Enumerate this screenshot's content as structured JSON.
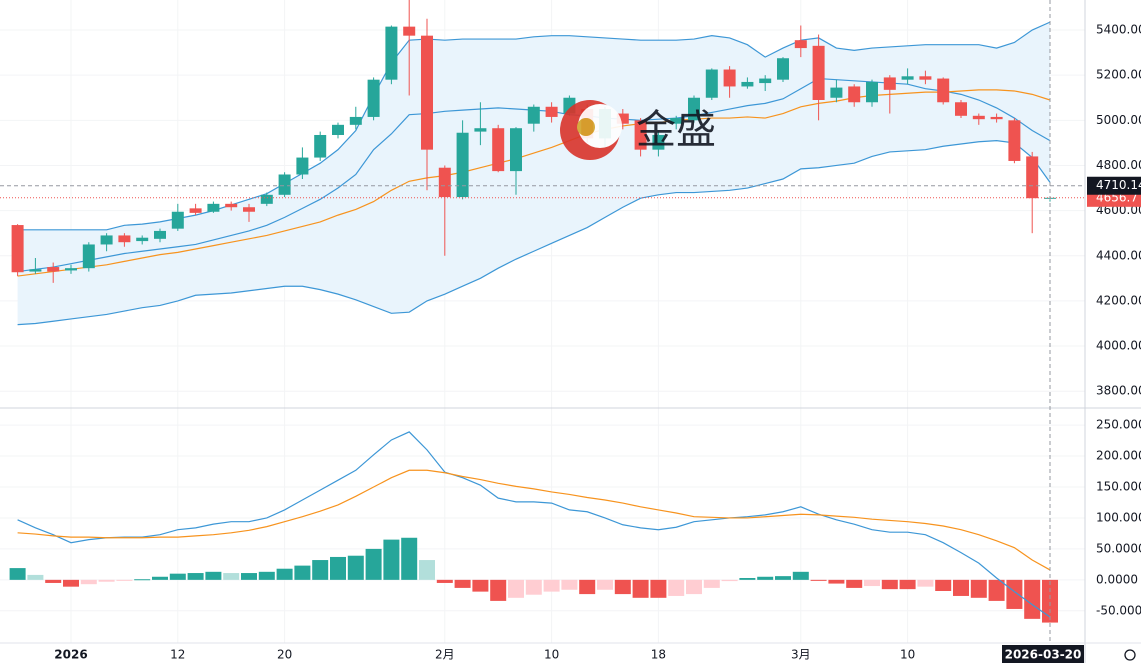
{
  "chart_data": [
    {
      "type": "candlestick",
      "categories": [
        null,
        null,
        null,
        "2026",
        null,
        null,
        null,
        null,
        null,
        "12",
        null,
        null,
        null,
        null,
        null,
        "20",
        null,
        null,
        null,
        null,
        null,
        null,
        null,
        null,
        "2月",
        null,
        null,
        null,
        null,
        null,
        "10",
        null,
        null,
        null,
        null,
        null,
        "18",
        null,
        null,
        null,
        null,
        null,
        null,
        null,
        "3月",
        null,
        null,
        null,
        null,
        null,
        "10",
        null,
        null,
        null,
        null,
        null,
        null,
        null,
        "2026-03-20"
      ],
      "open": [
        4536,
        4330,
        4350,
        4335,
        4345,
        4450,
        4490,
        4465,
        4475,
        4520,
        4610,
        4595,
        4630,
        4615,
        4630,
        4670,
        4760,
        4835,
        4935,
        4980,
        5015,
        5180,
        5415,
        5375,
        4790,
        4660,
        4950,
        4965,
        4775,
        4985,
        5060,
        5030,
        5050,
        4920,
        5030,
        5000,
        4870,
        4985,
        5000,
        5100,
        5225,
        5150,
        5165,
        5180,
        5355,
        5330,
        5100,
        5150,
        5080,
        5190,
        5180,
        5195,
        5185,
        5080,
        5020,
        5015,
        5000,
        4840,
        4656.7
      ],
      "high": [
        4540,
        4390,
        4370,
        4360,
        4460,
        4500,
        4500,
        4490,
        4520,
        4630,
        4630,
        4640,
        4640,
        4630,
        4680,
        4770,
        4880,
        4950,
        4990,
        5060,
        5190,
        5420,
        5533,
        5450,
        4800,
        5000,
        5080,
        4980,
        4970,
        5070,
        5080,
        5110,
        5070,
        5060,
        5050,
        5010,
        4950,
        5020,
        5110,
        5230,
        5240,
        5190,
        5200,
        5280,
        5420,
        5380,
        5180,
        5160,
        5180,
        5200,
        5230,
        5220,
        5190,
        5090,
        5030,
        5030,
        5010,
        4860,
        4665
      ],
      "low": [
        4310,
        4320,
        4280,
        4320,
        4330,
        4420,
        4440,
        4450,
        4460,
        4510,
        4580,
        4590,
        4600,
        4550,
        4620,
        4660,
        4740,
        4820,
        4920,
        4960,
        5000,
        5160,
        5110,
        4690,
        4400,
        4650,
        4890,
        4770,
        4670,
        4950,
        4990,
        5020,
        4900,
        4880,
        4960,
        4840,
        4840,
        4960,
        4990,
        5090,
        5100,
        5140,
        5130,
        5170,
        5280,
        5000,
        5080,
        5060,
        5060,
        5030,
        5160,
        5160,
        5070,
        5010,
        4980,
        4990,
        4810,
        4500,
        4640
      ],
      "close": [
        4327,
        4340,
        4330,
        4345,
        4450,
        4490,
        4460,
        4480,
        4510,
        4595,
        4590,
        4630,
        4615,
        4595,
        4670,
        4760,
        4835,
        4935,
        4980,
        5015,
        5180,
        5415,
        5375,
        4870,
        4660,
        4945,
        4965,
        4775,
        4965,
        5060,
        5015,
        5100,
        4920,
        5050,
        4985,
        4870,
        4935,
        5010,
        5100,
        5225,
        5150,
        5170,
        5185,
        5275,
        5320,
        5090,
        5145,
        5080,
        5170,
        5135,
        5195,
        5180,
        5080,
        5020,
        5005,
        5005,
        4820,
        4655,
        4656.7
      ],
      "up_color": "#26a69a",
      "down_color": "#ef5350",
      "band_color": "#e9f4fc",
      "series": [
        {
          "color": "#3d97d6",
          "values": [
            4515,
            4515,
            4515,
            4515,
            4515,
            4515,
            4535,
            4540,
            4550,
            4565,
            4580,
            4600,
            4625,
            4650,
            4675,
            4720,
            4765,
            4810,
            4870,
            4955,
            5110,
            5255,
            5355,
            5360,
            5355,
            5360,
            5360,
            5360,
            5360,
            5370,
            5375,
            5375,
            5370,
            5365,
            5360,
            5355,
            5355,
            5355,
            5360,
            5375,
            5365,
            5335,
            5280,
            5320,
            5355,
            5365,
            5320,
            5310,
            5320,
            5325,
            5330,
            5335,
            5335,
            5335,
            5335,
            5320,
            5345,
            5400,
            5435
          ]
        },
        {
          "color": "#3d97d6",
          "values": [
            4330,
            4340,
            4350,
            4365,
            4380,
            4395,
            4410,
            4420,
            4430,
            4440,
            4450,
            4470,
            4490,
            4510,
            4535,
            4570,
            4610,
            4650,
            4700,
            4760,
            4870,
            4940,
            5025,
            5030,
            5040,
            5045,
            5050,
            5055,
            5050,
            5045,
            5040,
            5025,
            5020,
            5010,
            5005,
            5000,
            5005,
            5010,
            5020,
            5035,
            5050,
            5065,
            5075,
            5095,
            5140,
            5185,
            5180,
            5175,
            5170,
            5165,
            5160,
            5140,
            5130,
            5115,
            5090,
            5055,
            5010,
            4955,
            4910
          ]
        },
        {
          "color": "#3d97d6",
          "values": [
            4095,
            4100,
            4110,
            4120,
            4130,
            4140,
            4155,
            4170,
            4180,
            4200,
            4225,
            4230,
            4235,
            4245,
            4255,
            4265,
            4265,
            4250,
            4230,
            4205,
            4175,
            4145,
            4150,
            4200,
            4230,
            4265,
            4300,
            4345,
            4385,
            4420,
            4455,
            4490,
            4525,
            4570,
            4615,
            4655,
            4670,
            4680,
            4680,
            4685,
            4690,
            4700,
            4720,
            4740,
            4785,
            4790,
            4800,
            4810,
            4840,
            4860,
            4865,
            4870,
            4885,
            4895,
            4905,
            4910,
            4900,
            4835,
            4725
          ]
        },
        {
          "color": "#f7931e",
          "values": [
            4310,
            4320,
            4330,
            4340,
            4350,
            4360,
            4375,
            4390,
            4405,
            4415,
            4430,
            4445,
            4460,
            4475,
            4490,
            4510,
            4530,
            4550,
            4580,
            4605,
            4640,
            4690,
            4730,
            4745,
            4755,
            4770,
            4790,
            4810,
            4830,
            4855,
            4880,
            4910,
            4940,
            4960,
            4975,
            4985,
            4990,
            5000,
            5005,
            5010,
            5010,
            5015,
            5010,
            5030,
            5060,
            5075,
            5085,
            5100,
            5110,
            5115,
            5120,
            5125,
            5125,
            5130,
            5135,
            5135,
            5130,
            5115,
            5090
          ]
        }
      ],
      "ylim": [
        3730,
        5533
      ],
      "yticks": [
        {
          "value": 3800,
          "label": "3800.00"
        },
        {
          "value": 4000,
          "label": "4000.00"
        },
        {
          "value": 4200,
          "label": "4200.00"
        },
        {
          "value": 4400,
          "label": "4400.00"
        },
        {
          "value": 4600,
          "label": "4600.00"
        },
        {
          "value": 4800,
          "label": "4800.00"
        },
        {
          "value": 5000,
          "label": "5000.00"
        },
        {
          "value": 5200,
          "label": "5200.00"
        },
        {
          "value": 5400,
          "label": "5400.00"
        }
      ],
      "crosshair": 4710.14,
      "last_price": 4656.7,
      "grid": true,
      "watermark": "金盛"
    },
    {
      "type": "macd",
      "series": [
        {
          "color": "#3d97d6",
          "values": [
            97,
            84,
            73,
            60,
            65,
            68,
            69,
            69,
            73,
            81,
            84,
            90,
            94,
            94,
            100,
            113,
            129,
            145,
            161,
            177,
            202,
            226,
            239,
            210,
            174,
            165,
            153,
            132,
            126,
            126,
            124,
            113,
            110,
            100,
            89,
            84,
            81,
            85,
            94,
            97,
            100,
            102,
            105,
            110,
            118,
            106,
            97,
            90,
            81,
            77,
            77,
            73,
            60,
            44,
            27,
            3,
            -19,
            -40,
            -60
          ]
        },
        {
          "color": "#f7931e",
          "values": [
            76,
            74,
            71,
            69,
            69,
            68,
            68,
            68,
            69,
            69,
            71,
            73,
            76,
            80,
            86,
            94,
            102,
            111,
            121,
            135,
            150,
            165,
            177,
            177,
            173,
            167,
            162,
            156,
            151,
            147,
            142,
            138,
            133,
            129,
            124,
            118,
            113,
            108,
            102,
            101,
            100,
            100,
            102,
            104,
            106,
            105,
            103,
            101,
            98,
            96,
            94,
            91,
            87,
            81,
            73,
            63,
            52,
            32,
            16
          ]
        }
      ],
      "histogram": [
        19,
        8,
        -5,
        -11,
        -7,
        -3,
        -1,
        1,
        5,
        10,
        11,
        13,
        11,
        11,
        13,
        18,
        23,
        32,
        37,
        39,
        50,
        65,
        68,
        32,
        -5,
        -13,
        -19,
        -34,
        -29,
        -24,
        -19,
        -16,
        -23,
        -16,
        -23,
        -29,
        -29,
        -26,
        -23,
        -13,
        -2,
        3,
        5,
        6,
        13,
        -1,
        -6,
        -13,
        -10,
        -15,
        -15,
        -11,
        -18,
        -26,
        -29,
        -34,
        -47,
        -63,
        -69
      ],
      "histogram_colors": {
        "up": "#26a69a",
        "up_fading": "#b2dfdb",
        "down": "#ef5350",
        "down_fading": "#ffcdd2"
      },
      "ylim": [
        -102,
        276
      ],
      "yticks": [
        {
          "value": -50,
          "label": "-50.0000"
        },
        {
          "value": 0,
          "label": "0.0000"
        },
        {
          "value": 50,
          "label": "50.0000"
        },
        {
          "value": 100,
          "label": "100.000"
        },
        {
          "value": 150,
          "label": "150.000"
        },
        {
          "value": 200,
          "label": "200.000"
        },
        {
          "value": 250,
          "label": "250.000"
        }
      ]
    }
  ]
}
